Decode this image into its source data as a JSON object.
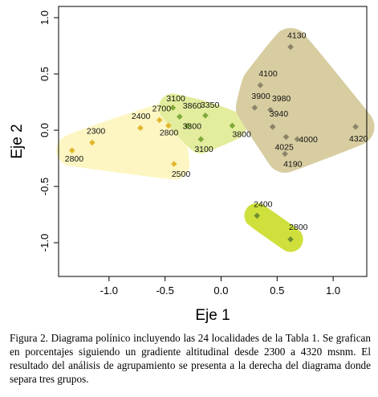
{
  "chart_data": {
    "type": "scatter",
    "xlabel": "Eje 1",
    "ylabel": "Eje 2",
    "xlim": [
      -1.45,
      1.3
    ],
    "ylim": [
      -1.3,
      1.1
    ],
    "xticks": [
      -1.0,
      -0.5,
      0.0,
      0.5,
      1.0
    ],
    "xtick_labels": [
      "-1.0",
      "-0.5",
      "0.0",
      "0.5",
      "1.0"
    ],
    "yticks": [
      -1.0,
      -0.5,
      0.0,
      0.5,
      1.0
    ],
    "ytick_labels": [
      "-1.0",
      "-0.5",
      "0.0",
      "0.5",
      "1.0"
    ],
    "grid": false,
    "groups": [
      {
        "fill": "#fdf6c3",
        "marker": "#e2b72c",
        "points": [
          {
            "label": "2800",
            "x": -1.33,
            "y": -0.18
          },
          {
            "label": "2300",
            "x": -1.15,
            "y": -0.11
          },
          {
            "label": "2400",
            "x": -0.72,
            "y": 0.02
          },
          {
            "label": "2700",
            "x": -0.55,
            "y": 0.09
          },
          {
            "label": "2800",
            "x": -0.47,
            "y": 0.04
          },
          {
            "label": "2500",
            "x": -0.42,
            "y": -0.3
          }
        ]
      },
      {
        "fill": "#e4ec9d",
        "marker": "#7faa3b",
        "points": [
          {
            "label": "3100",
            "x": -0.43,
            "y": 0.2
          },
          {
            "label": "3860",
            "x": -0.37,
            "y": 0.12
          },
          {
            "label": "3300",
            "x": -0.3,
            "y": 0.04
          },
          {
            "label": "3350",
            "x": -0.14,
            "y": 0.13
          },
          {
            "label": "3100",
            "x": -0.18,
            "y": -0.08
          },
          {
            "label": "3800",
            "x": 0.1,
            "y": 0.04
          }
        ]
      },
      {
        "fill": "#d8cda1",
        "marker": "#8c8468",
        "points": [
          {
            "label": "4130",
            "x": 0.62,
            "y": 0.74
          },
          {
            "label": "4100",
            "x": 0.35,
            "y": 0.4
          },
          {
            "label": "3900",
            "x": 0.3,
            "y": 0.2
          },
          {
            "label": "3980",
            "x": 0.44,
            "y": 0.18
          },
          {
            "label": "3940",
            "x": 0.46,
            "y": 0.03
          },
          {
            "label": "4025",
            "x": 0.58,
            "y": -0.06
          },
          {
            "label": "4000",
            "x": 0.68,
            "y": -0.08
          },
          {
            "label": "4190",
            "x": 0.57,
            "y": -0.21
          },
          {
            "label": "4320",
            "x": 1.2,
            "y": 0.03
          }
        ]
      },
      {
        "fill": "#cfe03c",
        "marker": "#6f8f2e",
        "points": [
          {
            "label": "2400",
            "x": 0.32,
            "y": -0.76
          },
          {
            "label": "2800",
            "x": 0.62,
            "y": -0.97
          }
        ]
      }
    ]
  },
  "caption": "Figura 2. Diagrama polínico incluyendo las 24 localidades de la Tabla 1. Se grafican en porcentajes siguiendo un gradiente altitudinal desde 2300 a 4320 msnm. El resultado del análisis de agrupamiento se presenta a la derecha del diagrama donde separa tres grupos."
}
